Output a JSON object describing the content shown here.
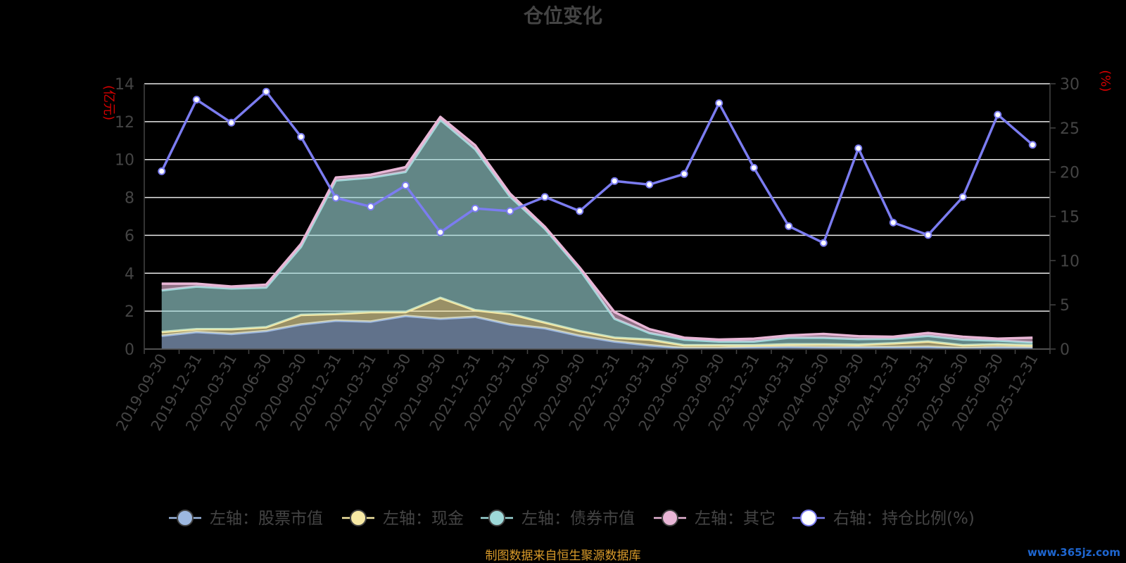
{
  "chart_data": {
    "type": "area",
    "title": "仓位变化",
    "source_note": "制图数据来自恒生聚源数据库",
    "watermark": "www.365jz.com",
    "left_axis": {
      "unit_label": "(亿元)",
      "min": 0,
      "max": 14,
      "ticks": [
        0,
        2,
        4,
        6,
        8,
        10,
        12,
        14
      ]
    },
    "right_axis": {
      "unit_label": "(%)",
      "min": 0,
      "max": 30,
      "ticks": [
        0,
        5,
        10,
        15,
        20,
        25,
        30
      ]
    },
    "grid": true,
    "legend_position": "bottom",
    "categories": [
      "2019-09-30",
      "2019-12-31",
      "2020-03-31",
      "2020-06-30",
      "2020-09-30",
      "2020-12-31",
      "2021-03-31",
      "2021-06-30",
      "2021-09-30",
      "2021-12-31",
      "2022-03-31",
      "2022-06-30",
      "2022-09-30",
      "2022-12-31",
      "2023-03-31",
      "2023-06-30",
      "2023-09-30",
      "2023-12-31",
      "2024-03-31",
      "2024-06-30",
      "2024-09-30",
      "2024-12-31",
      "2025-03-31",
      "2025-06-30",
      "2025-09-30",
      "2025-12-31"
    ],
    "series": [
      {
        "name": "左轴：股票市值",
        "axis": "left",
        "stacked": true,
        "color": "#9db8e0",
        "values": [
          0.7,
          0.9,
          0.8,
          0.95,
          1.3,
          1.5,
          1.45,
          1.75,
          1.6,
          1.7,
          1.3,
          1.1,
          0.7,
          0.4,
          0.2,
          0.05,
          0.05,
          0.1,
          0.12,
          0.1,
          0.1,
          0.1,
          0.12,
          0.05,
          0.1,
          0.08
        ]
      },
      {
        "name": "左轴：现金",
        "axis": "left",
        "stacked": true,
        "color": "#f7e9a4",
        "values": [
          0.2,
          0.15,
          0.25,
          0.2,
          0.5,
          0.35,
          0.5,
          0.2,
          1.1,
          0.35,
          0.55,
          0.3,
          0.25,
          0.2,
          0.3,
          0.15,
          0.15,
          0.1,
          0.13,
          0.15,
          0.13,
          0.2,
          0.28,
          0.15,
          0.15,
          0.12
        ]
      },
      {
        "name": "左轴：债券市值",
        "axis": "left",
        "stacked": true,
        "color": "#9ed9d9",
        "values": [
          2.2,
          2.25,
          2.15,
          2.1,
          3.6,
          7.05,
          7.1,
          7.4,
          9.4,
          8.5,
          6.2,
          4.95,
          3.25,
          1.0,
          0.35,
          0.3,
          0.2,
          0.2,
          0.35,
          0.35,
          0.3,
          0.25,
          0.3,
          0.3,
          0.2,
          0.15
        ]
      },
      {
        "name": "左轴：其它",
        "axis": "left",
        "stacked": true,
        "color": "#e9b6d6",
        "values": [
          0.35,
          0.15,
          0.1,
          0.15,
          0.15,
          0.15,
          0.15,
          0.25,
          0.15,
          0.2,
          0.15,
          0.1,
          0.1,
          0.35,
          0.2,
          0.1,
          0.1,
          0.15,
          0.12,
          0.2,
          0.15,
          0.1,
          0.15,
          0.15,
          0.1,
          0.25
        ]
      },
      {
        "name": "右轴：持仓比例(%)",
        "axis": "right",
        "stacked": false,
        "color": "#7b7cf0",
        "values": [
          20.1,
          28.2,
          25.6,
          29.1,
          24.0,
          17.1,
          16.1,
          18.5,
          13.2,
          15.9,
          15.6,
          17.2,
          15.6,
          19.0,
          18.6,
          19.8,
          27.8,
          20.5,
          13.9,
          12.0,
          22.7,
          14.3,
          12.9,
          17.2,
          26.5,
          23.1
        ]
      }
    ]
  }
}
